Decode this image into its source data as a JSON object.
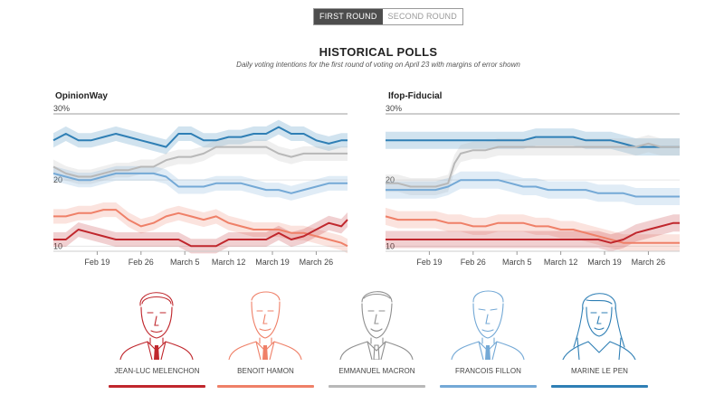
{
  "toggle": {
    "first_round": "FIRST ROUND",
    "second_round": "SECOND ROUND"
  },
  "header": {
    "title": "HISTORICAL POLLS",
    "subtitle": "Daily voting intentions for the first round of voting on April 23 with margins of error shown"
  },
  "candidates": [
    {
      "name": "JEAN-LUC MELENCHON",
      "color": "#c0272d",
      "icon": "melenchon-portrait-icon"
    },
    {
      "name": "BENOIT HAMON",
      "color": "#ef8068",
      "icon": "hamon-portrait-icon"
    },
    {
      "name": "EMMANUEL MACRON",
      "color": "#b8b8b8",
      "icon": "macron-portrait-icon"
    },
    {
      "name": "FRANCOIS FILLON",
      "color": "#74a9d6",
      "icon": "fillon-portrait-icon"
    },
    {
      "name": "MARINE LE PEN",
      "color": "#2f7fb5",
      "icon": "le-pen-portrait-icon"
    }
  ],
  "chart_data": [
    {
      "type": "line",
      "title": "OpinionWay",
      "xlim": [
        0,
        47
      ],
      "ylim": [
        9.5,
        30
      ],
      "y_ticks": [
        10,
        20
      ],
      "y_top_label": "30%",
      "x_ticks": [
        {
          "label": "Feb 19",
          "x": 7
        },
        {
          "label": "Feb 26",
          "x": 14
        },
        {
          "label": "March 5",
          "x": 21
        },
        {
          "label": "March 12",
          "x": 28
        },
        {
          "label": "March 19",
          "x": 35
        },
        {
          "label": "March 26",
          "x": 42
        }
      ],
      "margin_of_error": 1.1,
      "series": [
        {
          "name": "MARINE LE PEN",
          "points": [
            [
              0,
              26
            ],
            [
              2,
              27
            ],
            [
              4,
              26
            ],
            [
              6,
              26
            ],
            [
              8,
              26.5
            ],
            [
              10,
              27
            ],
            [
              12,
              26.5
            ],
            [
              14,
              26
            ],
            [
              16,
              25.5
            ],
            [
              18,
              25
            ],
            [
              20,
              27
            ],
            [
              22,
              27
            ],
            [
              24,
              26
            ],
            [
              26,
              26
            ],
            [
              28,
              26.5
            ],
            [
              30,
              26.5
            ],
            [
              32,
              27
            ],
            [
              34,
              27
            ],
            [
              36,
              28
            ],
            [
              38,
              27
            ],
            [
              40,
              27
            ],
            [
              42,
              26
            ],
            [
              44,
              25.5
            ],
            [
              46,
              26
            ],
            [
              47,
              26
            ]
          ]
        },
        {
          "name": "EMMANUEL MACRON",
          "points": [
            [
              0,
              22
            ],
            [
              2,
              21
            ],
            [
              4,
              20.5
            ],
            [
              6,
              20.5
            ],
            [
              8,
              21
            ],
            [
              10,
              21.5
            ],
            [
              12,
              21.5
            ],
            [
              14,
              22
            ],
            [
              16,
              22
            ],
            [
              18,
              23
            ],
            [
              20,
              23.5
            ],
            [
              22,
              23.5
            ],
            [
              24,
              24
            ],
            [
              26,
              25
            ],
            [
              28,
              25
            ],
            [
              30,
              25
            ],
            [
              32,
              25
            ],
            [
              34,
              25
            ],
            [
              36,
              24
            ],
            [
              38,
              23.5
            ],
            [
              40,
              24
            ],
            [
              42,
              24
            ],
            [
              44,
              24
            ],
            [
              46,
              24
            ],
            [
              47,
              24
            ]
          ]
        },
        {
          "name": "FRANCOIS FILLON",
          "points": [
            [
              0,
              21
            ],
            [
              2,
              20.5
            ],
            [
              4,
              20
            ],
            [
              6,
              20
            ],
            [
              8,
              20.5
            ],
            [
              10,
              21
            ],
            [
              12,
              21
            ],
            [
              14,
              21
            ],
            [
              16,
              21
            ],
            [
              18,
              20.5
            ],
            [
              20,
              19
            ],
            [
              22,
              19
            ],
            [
              24,
              19
            ],
            [
              26,
              19.5
            ],
            [
              28,
              19.5
            ],
            [
              30,
              19.5
            ],
            [
              32,
              19
            ],
            [
              34,
              18.5
            ],
            [
              36,
              18.5
            ],
            [
              38,
              18
            ],
            [
              40,
              18.5
            ],
            [
              42,
              19
            ],
            [
              44,
              19.5
            ],
            [
              46,
              19.5
            ],
            [
              47,
              19.5
            ]
          ]
        },
        {
          "name": "BENOIT HAMON",
          "points": [
            [
              0,
              14.5
            ],
            [
              2,
              14.5
            ],
            [
              4,
              15
            ],
            [
              6,
              15
            ],
            [
              8,
              15.5
            ],
            [
              10,
              15.5
            ],
            [
              12,
              14
            ],
            [
              14,
              13
            ],
            [
              16,
              13.5
            ],
            [
              18,
              14.5
            ],
            [
              20,
              15
            ],
            [
              22,
              14.5
            ],
            [
              24,
              14
            ],
            [
              26,
              14.5
            ],
            [
              28,
              13.5
            ],
            [
              30,
              13
            ],
            [
              32,
              12.5
            ],
            [
              34,
              12.5
            ],
            [
              36,
              12.5
            ],
            [
              38,
              12
            ],
            [
              40,
              12
            ],
            [
              42,
              11.5
            ],
            [
              44,
              11
            ],
            [
              46,
              10.5
            ],
            [
              47,
              10
            ]
          ]
        },
        {
          "name": "JEAN-LUC MELENCHON",
          "points": [
            [
              0,
              11
            ],
            [
              2,
              11
            ],
            [
              4,
              12.5
            ],
            [
              6,
              12
            ],
            [
              8,
              11.5
            ],
            [
              10,
              11
            ],
            [
              12,
              11
            ],
            [
              14,
              11
            ],
            [
              16,
              11
            ],
            [
              18,
              11
            ],
            [
              20,
              11
            ],
            [
              22,
              10
            ],
            [
              24,
              10
            ],
            [
              26,
              10
            ],
            [
              28,
              11
            ],
            [
              30,
              11
            ],
            [
              32,
              11
            ],
            [
              34,
              11
            ],
            [
              36,
              12
            ],
            [
              38,
              11
            ],
            [
              40,
              11.5
            ],
            [
              42,
              12.5
            ],
            [
              44,
              13.5
            ],
            [
              46,
              13
            ],
            [
              47,
              14
            ]
          ]
        }
      ]
    },
    {
      "type": "line",
      "title": "Ifop-Fiducial",
      "xlim": [
        0,
        47
      ],
      "ylim": [
        9.5,
        30
      ],
      "y_ticks": [
        10,
        20
      ],
      "y_top_label": "30%",
      "x_ticks": [
        {
          "label": "Feb 19",
          "x": 7
        },
        {
          "label": "Feb 26",
          "x": 14
        },
        {
          "label": "March 5",
          "x": 21
        },
        {
          "label": "March 12",
          "x": 28
        },
        {
          "label": "March 19",
          "x": 35
        },
        {
          "label": "March 26",
          "x": 42
        }
      ],
      "margin_of_error": 1.3,
      "series": [
        {
          "name": "MARINE LE PEN",
          "points": [
            [
              0,
              26
            ],
            [
              2,
              26
            ],
            [
              4,
              26
            ],
            [
              6,
              26
            ],
            [
              8,
              26
            ],
            [
              10,
              26
            ],
            [
              12,
              26
            ],
            [
              14,
              26
            ],
            [
              16,
              26
            ],
            [
              18,
              26
            ],
            [
              20,
              26
            ],
            [
              22,
              26
            ],
            [
              24,
              26.5
            ],
            [
              26,
              26.5
            ],
            [
              28,
              26.5
            ],
            [
              30,
              26.5
            ],
            [
              32,
              26
            ],
            [
              34,
              26
            ],
            [
              36,
              26
            ],
            [
              38,
              25.5
            ],
            [
              40,
              25
            ],
            [
              42,
              25
            ],
            [
              44,
              25
            ],
            [
              46,
              25
            ],
            [
              47,
              25
            ]
          ]
        },
        {
          "name": "EMMANUEL MACRON",
          "points": [
            [
              0,
              19.5
            ],
            [
              2,
              19.5
            ],
            [
              4,
              19
            ],
            [
              6,
              19
            ],
            [
              8,
              19
            ],
            [
              10,
              19.5
            ],
            [
              11,
              22.5
            ],
            [
              12,
              24
            ],
            [
              14,
              24.5
            ],
            [
              16,
              24.5
            ],
            [
              18,
              25
            ],
            [
              20,
              25
            ],
            [
              22,
              25
            ],
            [
              24,
              25
            ],
            [
              26,
              25
            ],
            [
              28,
              25
            ],
            [
              30,
              25
            ],
            [
              32,
              25
            ],
            [
              34,
              25
            ],
            [
              36,
              25
            ],
            [
              38,
              25
            ],
            [
              40,
              25
            ],
            [
              42,
              25.5
            ],
            [
              44,
              25
            ],
            [
              46,
              25
            ],
            [
              47,
              25
            ]
          ]
        },
        {
          "name": "FRANCOIS FILLON",
          "points": [
            [
              0,
              18.5
            ],
            [
              2,
              18.5
            ],
            [
              4,
              18.5
            ],
            [
              6,
              18.5
            ],
            [
              8,
              18.5
            ],
            [
              10,
              19
            ],
            [
              12,
              20
            ],
            [
              14,
              20
            ],
            [
              16,
              20
            ],
            [
              18,
              20
            ],
            [
              20,
              19.5
            ],
            [
              22,
              19
            ],
            [
              24,
              19
            ],
            [
              26,
              18.5
            ],
            [
              28,
              18.5
            ],
            [
              30,
              18.5
            ],
            [
              32,
              18.5
            ],
            [
              34,
              18
            ],
            [
              36,
              18
            ],
            [
              38,
              18
            ],
            [
              40,
              17.5
            ],
            [
              42,
              17.5
            ],
            [
              44,
              17.5
            ],
            [
              46,
              17.5
            ],
            [
              47,
              17.5
            ]
          ]
        },
        {
          "name": "BENOIT HAMON",
          "points": [
            [
              0,
              14.5
            ],
            [
              2,
              14
            ],
            [
              4,
              14
            ],
            [
              6,
              14
            ],
            [
              8,
              14
            ],
            [
              10,
              13.5
            ],
            [
              12,
              13.5
            ],
            [
              14,
              13
            ],
            [
              16,
              13
            ],
            [
              18,
              13.5
            ],
            [
              20,
              13.5
            ],
            [
              22,
              13.5
            ],
            [
              24,
              13
            ],
            [
              26,
              13
            ],
            [
              28,
              12.5
            ],
            [
              30,
              12.5
            ],
            [
              32,
              12
            ],
            [
              34,
              11.5
            ],
            [
              36,
              11
            ],
            [
              38,
              10.5
            ],
            [
              40,
              10.5
            ],
            [
              42,
              10.5
            ],
            [
              44,
              10.5
            ],
            [
              46,
              10.5
            ],
            [
              47,
              10.5
            ]
          ]
        },
        {
          "name": "JEAN-LUC MELENCHON",
          "points": [
            [
              0,
              11
            ],
            [
              2,
              11
            ],
            [
              4,
              11
            ],
            [
              6,
              11
            ],
            [
              8,
              11
            ],
            [
              10,
              11
            ],
            [
              12,
              11
            ],
            [
              14,
              11
            ],
            [
              16,
              11
            ],
            [
              18,
              11
            ],
            [
              20,
              11
            ],
            [
              22,
              11
            ],
            [
              24,
              11
            ],
            [
              26,
              11
            ],
            [
              28,
              11
            ],
            [
              30,
              11
            ],
            [
              32,
              11
            ],
            [
              34,
              11
            ],
            [
              36,
              10.5
            ],
            [
              38,
              11
            ],
            [
              40,
              12
            ],
            [
              42,
              12.5
            ],
            [
              44,
              13
            ],
            [
              46,
              13.5
            ],
            [
              47,
              13.5
            ]
          ]
        }
      ]
    }
  ]
}
